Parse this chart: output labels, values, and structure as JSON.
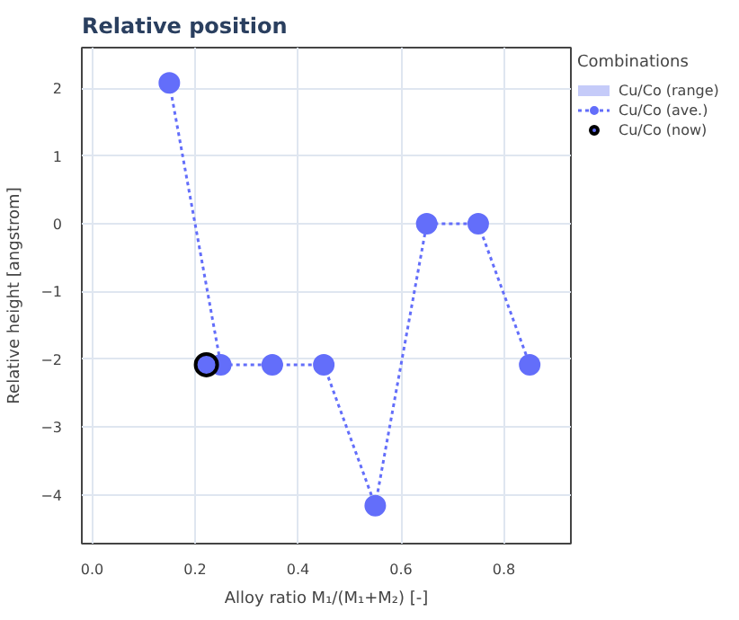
{
  "chart_data": {
    "type": "line",
    "title": "Relative position",
    "xlabel": "Alloy ratio M₁/(M₁+M₂) [-]",
    "ylabel": "Relative height [angstrom]",
    "legend_title": "Combinations",
    "xlim": [
      -0.02,
      0.93
    ],
    "xticks": [
      {
        "value": 0,
        "label": "0.0"
      },
      0.2,
      0.4,
      0.6,
      0.8
    ],
    "ylim": [
      -4.72,
      2.6
    ],
    "yticks": [
      -4,
      -3,
      -2,
      -1,
      0,
      1,
      2
    ],
    "grid": true,
    "legend": "right",
    "x": [
      0.15,
      0.25,
      0.35,
      0.45,
      0.55,
      0.65,
      0.75,
      0.85
    ],
    "series": [
      {
        "name": "Cu/Co (range)",
        "type": "area",
        "color": "#c5cbf9",
        "values": [
          null,
          null,
          null,
          null,
          null,
          null,
          null,
          null
        ]
      },
      {
        "name": "Cu/Co (ave.)",
        "color": "#636efa",
        "marker": "circle",
        "line_style": "dotted",
        "values": [
          2.08,
          -2.08,
          -2.08,
          -2.08,
          -4.16,
          0,
          0,
          -2.08
        ]
      },
      {
        "name": "Cu/Co (now)",
        "type": "scatter",
        "color": "#636efa",
        "marker": "circle",
        "x": [
          0.222
        ],
        "values": [
          -2.08
        ]
      }
    ]
  }
}
